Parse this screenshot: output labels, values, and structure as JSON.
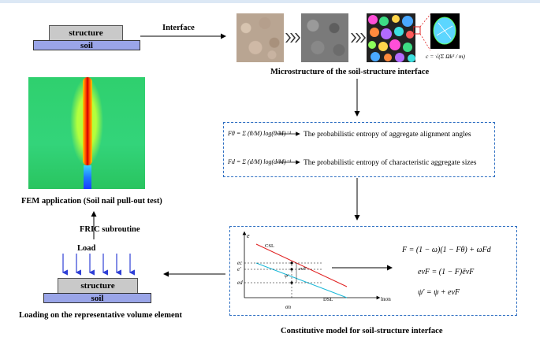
{
  "top_left": {
    "structure_label": "structure",
    "soil_label": "soil",
    "interface_label": "Interface"
  },
  "micro": {
    "caption": "Microstructure of the soil-structure interface",
    "formula": "c = √(Σ Ωk² / m)"
  },
  "entropy": {
    "f1_formula": "Fθ = Σ (θ/M) log(θ/M)⁻¹",
    "f1_text": "The probabilistic entropy of aggregate alignment angles",
    "f2_formula": "Fd = Σ (d/M) log(d/M)⁻¹",
    "f2_text": "The probabilistic entropy of characteristic aggregate sizes"
  },
  "fem": {
    "caption": "FEM application (Soil nail pull-out test)",
    "fric_label": "FRIC subroutine",
    "load_label": "Load"
  },
  "rve": {
    "structure_label": "structure",
    "soil_label": "soil",
    "caption": "Loading on the representative volume element"
  },
  "model": {
    "caption": "Constitutive model for soil-structure interface",
    "axis_e": "e",
    "axis_x": "lnσn",
    "csl": "CSL",
    "dsl": "DSL",
    "e_c": "ec",
    "e_prime": "e'",
    "e_d": "ed",
    "psi": "ψ'",
    "e_vf": "evF",
    "sigma_n": "σn",
    "eq1": "F = (1 − ω)(1 − Fθ) + ωFd",
    "eq2": "evF = (1 − F)ēvF",
    "eq3": "ψ' = ψ + evF"
  }
}
